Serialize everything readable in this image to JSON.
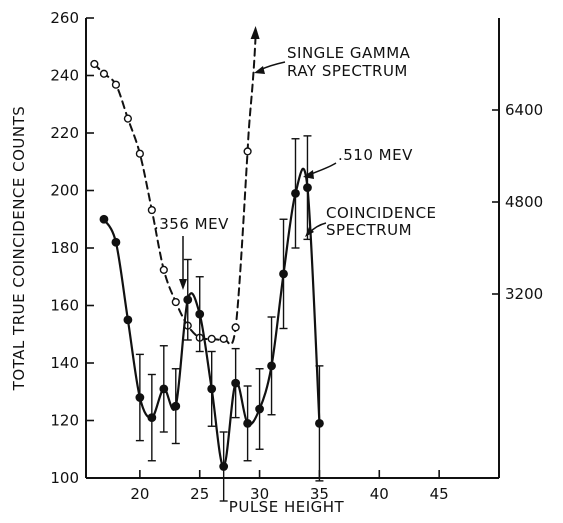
{
  "chart_data": {
    "type": "line",
    "xlabel": "PULSE HEIGHT",
    "ylabel": "TOTAL TRUE COINCIDENCE COUNTS",
    "xlim": [
      15.5,
      50
    ],
    "ylim": [
      100,
      260
    ],
    "right_ylim": [
      0,
      8000
    ],
    "grid": false,
    "x_ticks": [
      20,
      25,
      30,
      35,
      40,
      45
    ],
    "x_tick_labels": [
      "20",
      "25",
      "30",
      "35",
      "40",
      "45"
    ],
    "y_ticks": [
      100,
      120,
      140,
      160,
      180,
      200,
      220,
      240,
      260
    ],
    "y_tick_labels": [
      "100",
      "120",
      "140",
      "160",
      "180",
      "200",
      "220",
      "240",
      "260"
    ],
    "right_y_ticks": [
      3200,
      4800,
      6400
    ],
    "right_y_tick_labels": [
      "3200",
      "4800",
      "6400"
    ],
    "series": [
      {
        "name": "COINCIDENCE SPECTRUM",
        "style": "solid-filled-circles",
        "x": [
          17,
          18,
          19,
          20,
          21,
          22,
          23,
          24,
          25,
          26,
          27,
          28,
          29,
          30,
          31,
          32,
          33,
          34,
          35
        ],
        "y": [
          190,
          182,
          155,
          128,
          121,
          131,
          125,
          162,
          157,
          131,
          104,
          133,
          119,
          124,
          139,
          171,
          199,
          201,
          119
        ],
        "err": [
          0,
          0,
          0,
          15,
          15,
          15,
          13,
          14,
          13,
          13,
          12,
          12,
          13,
          14,
          17,
          19,
          19,
          18,
          20
        ]
      },
      {
        "name": "SINGLE GAMMA RAY SPECTRUM",
        "style": "dashed-open-circles",
        "axis": "right",
        "x": [
          16.2,
          17,
          18,
          19,
          20,
          21,
          22,
          23,
          24,
          25,
          26,
          27,
          28,
          29
        ],
        "y": [
          7200,
          7030,
          6840,
          6250,
          5640,
          4660,
          3620,
          3060,
          2650,
          2440,
          2420,
          2420,
          2620,
          5680
        ]
      }
    ],
    "annotations": [
      {
        "text": ".356 MEV"
      },
      {
        "text": ".510 MEV"
      },
      {
        "text": "COINCIDENCE"
      },
      {
        "text": "SPECTRUM"
      },
      {
        "text": "SINGLE GAMMA"
      },
      {
        "text": "RAY SPECTRUM"
      }
    ]
  }
}
